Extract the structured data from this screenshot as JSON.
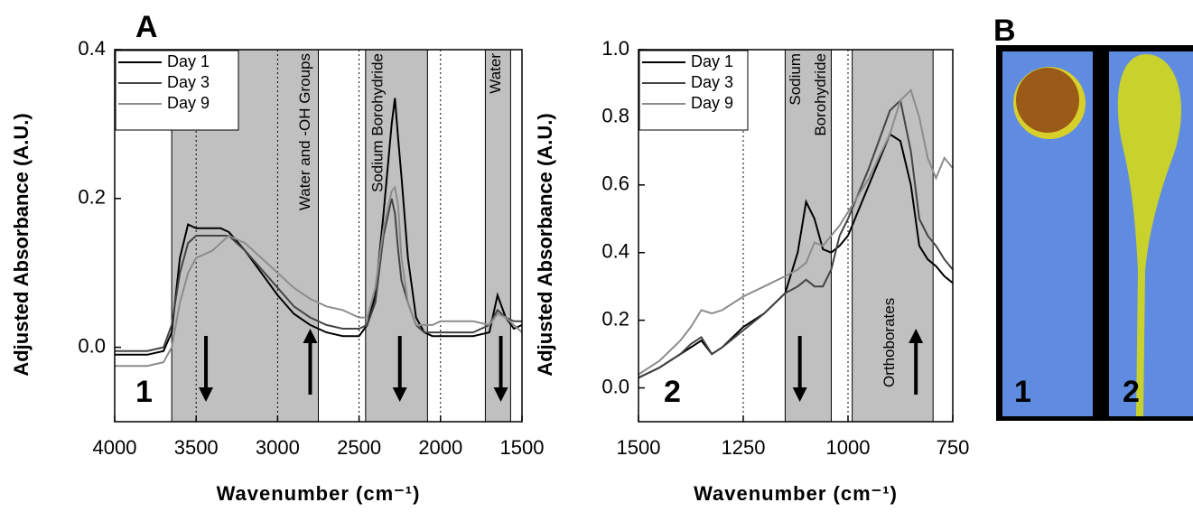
{
  "chart_data": [
    {
      "type": "line",
      "panel_label": "A",
      "inset_label": "1",
      "xlabel": "Wavenumber (cm⁻¹)",
      "ylabel": "Adjusted Absorbance (A.U.)",
      "xlim": [
        4000,
        1500
      ],
      "ylim": [
        -0.1,
        0.4
      ],
      "xticks": [
        4000,
        3500,
        3000,
        2500,
        2000,
        1500
      ],
      "yticks": [
        {
          "value": 0,
          "label": "0.0"
        },
        0.2,
        0.4
      ],
      "grid": "x-dotted",
      "x": [
        4000,
        3800,
        3700,
        3650,
        3600,
        3550,
        3500,
        3450,
        3400,
        3350,
        3300,
        3200,
        3100,
        3000,
        2900,
        2800,
        2700,
        2600,
        2500,
        2450,
        2400,
        2350,
        2300,
        2280,
        2260,
        2240,
        2200,
        2150,
        2100,
        2050,
        2000,
        1900,
        1800,
        1700,
        1650,
        1600,
        1550,
        1500
      ],
      "series": [
        {
          "name": "Day 1",
          "color": "#000000",
          "values": [
            -0.01,
            -0.01,
            -0.005,
            0.02,
            0.12,
            0.165,
            0.16,
            0.16,
            0.16,
            0.16,
            0.155,
            0.13,
            0.1,
            0.07,
            0.045,
            0.03,
            0.02,
            0.015,
            0.015,
            0.03,
            0.07,
            0.18,
            0.3,
            0.335,
            0.28,
            0.23,
            0.12,
            0.04,
            0.02,
            0.015,
            0.015,
            0.015,
            0.015,
            0.02,
            0.07,
            0.04,
            0.025,
            0.03
          ]
        },
        {
          "name": "Day 3",
          "color": "#444444",
          "values": [
            -0.005,
            -0.005,
            0,
            0.03,
            0.1,
            0.14,
            0.15,
            0.15,
            0.15,
            0.15,
            0.15,
            0.13,
            0.105,
            0.08,
            0.055,
            0.04,
            0.03,
            0.025,
            0.025,
            0.03,
            0.06,
            0.15,
            0.2,
            0.18,
            0.13,
            0.09,
            0.06,
            0.03,
            0.02,
            0.02,
            0.02,
            0.02,
            0.02,
            0.03,
            0.05,
            0.04,
            0.035,
            0.035
          ]
        },
        {
          "name": "Day 9",
          "color": "#8c8c8c",
          "values": [
            -0.025,
            -0.025,
            -0.02,
            0,
            0.06,
            0.1,
            0.12,
            0.125,
            0.13,
            0.14,
            0.15,
            0.14,
            0.12,
            0.1,
            0.08,
            0.065,
            0.055,
            0.05,
            0.04,
            0.04,
            0.08,
            0.16,
            0.21,
            0.215,
            0.19,
            0.12,
            0.06,
            0.03,
            0.03,
            0.03,
            0.035,
            0.035,
            0.035,
            0.03,
            0.045,
            0.04,
            0.03,
            0.02
          ]
        }
      ],
      "bands": [
        {
          "from": 3650,
          "to": 2750,
          "label": [
            "Water and -OH Groups"
          ]
        },
        {
          "from": 2460,
          "to": 2080,
          "label": [
            "Sodium Borohydride"
          ]
        },
        {
          "from": 1725,
          "to": 1570,
          "label": [
            "Water"
          ]
        }
      ],
      "arrows": [
        {
          "x": 3440,
          "direction": "down"
        },
        {
          "x": 2800,
          "direction": "up"
        },
        {
          "x": 2250,
          "direction": "down"
        },
        {
          "x": 1630,
          "direction": "down"
        }
      ]
    },
    {
      "type": "line",
      "inset_label": "2",
      "xlabel": "Wavenumber (cm⁻¹)",
      "ylabel": "Adjusted Absorbance (A.U.)",
      "xlim": [
        1500,
        750
      ],
      "ylim": [
        -0.1,
        1.0
      ],
      "xticks": [
        1500,
        1250,
        1000,
        750
      ],
      "yticks": [
        {
          "value": 0,
          "label": "0.0"
        },
        0.2,
        0.4,
        0.6,
        0.8,
        {
          "value": 1,
          "label": "1.0"
        }
      ],
      "grid": "x-dotted",
      "x": [
        1500,
        1450,
        1400,
        1375,
        1350,
        1325,
        1300,
        1250,
        1200,
        1150,
        1120,
        1100,
        1080,
        1060,
        1040,
        1020,
        1000,
        950,
        900,
        875,
        850,
        830,
        810,
        790,
        770,
        750
      ],
      "series": [
        {
          "name": "Day 1",
          "color": "#000000",
          "values": [
            0.03,
            0.06,
            0.1,
            0.12,
            0.14,
            0.1,
            0.12,
            0.18,
            0.22,
            0.28,
            0.4,
            0.55,
            0.5,
            0.41,
            0.4,
            0.42,
            0.45,
            0.6,
            0.75,
            0.73,
            0.6,
            0.42,
            0.38,
            0.36,
            0.33,
            0.31
          ]
        },
        {
          "name": "Day 3",
          "color": "#444444",
          "values": [
            0.03,
            0.06,
            0.1,
            0.13,
            0.15,
            0.1,
            0.12,
            0.17,
            0.22,
            0.28,
            0.3,
            0.32,
            0.3,
            0.3,
            0.35,
            0.45,
            0.5,
            0.65,
            0.82,
            0.85,
            0.7,
            0.5,
            0.45,
            0.42,
            0.38,
            0.35
          ]
        },
        {
          "name": "Day 9",
          "color": "#8c8c8c",
          "values": [
            0.04,
            0.08,
            0.14,
            0.18,
            0.23,
            0.22,
            0.23,
            0.27,
            0.3,
            0.33,
            0.35,
            0.37,
            0.43,
            0.42,
            0.45,
            0.48,
            0.52,
            0.62,
            0.75,
            0.85,
            0.88,
            0.8,
            0.68,
            0.62,
            0.68,
            0.65
          ]
        }
      ],
      "bands": [
        {
          "from": 1150,
          "to": 1040,
          "label": [
            "Sodium",
            "Borohydride"
          ]
        },
        {
          "from": 990,
          "to": 797,
          "label": [
            "Orthoborates"
          ]
        }
      ],
      "arrows": [
        {
          "x": 1115,
          "direction": "down"
        },
        {
          "x": 838,
          "direction": "up"
        }
      ]
    }
  ],
  "photo": {
    "panel_label": "B",
    "samples": [
      "1",
      "2"
    ]
  }
}
